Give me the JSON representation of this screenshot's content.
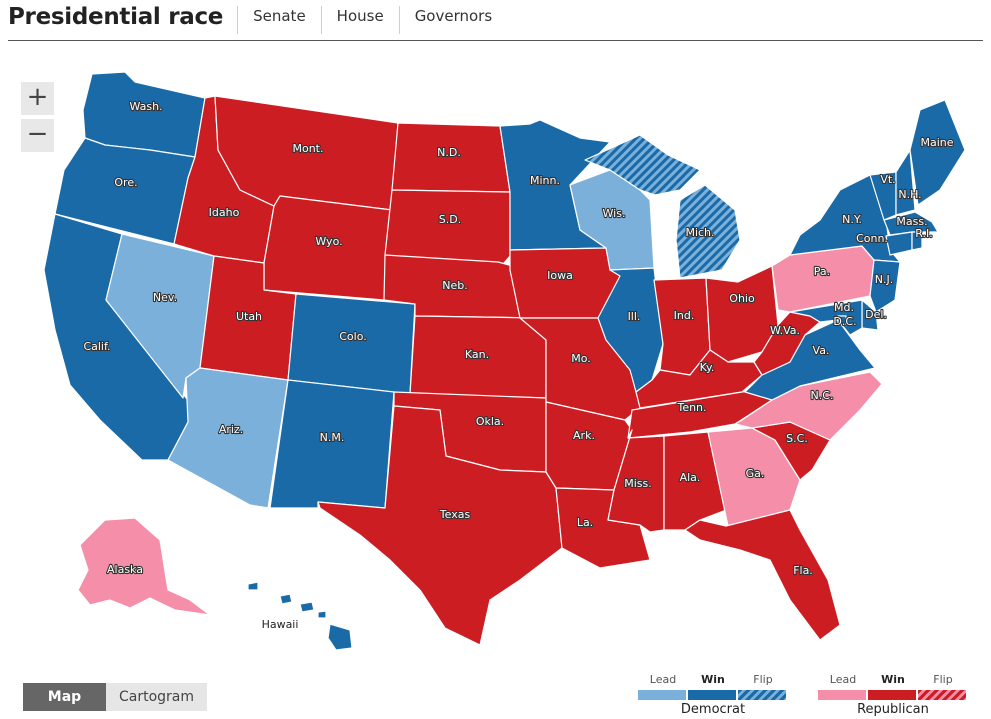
{
  "header": {
    "title": "Presidential race",
    "tabs": [
      "Senate",
      "House",
      "Governors"
    ]
  },
  "zoom": {
    "in_label": "+",
    "out_label": "−"
  },
  "toggle": {
    "map_label": "Map",
    "cartogram_label": "Cartogram",
    "selected": "Map"
  },
  "colors": {
    "dem_win": "#1a6aa8",
    "dem_lead": "#7ab0da",
    "dem_flip_pattern": "#1a6aa8",
    "rep_win": "#cc1d23",
    "rep_lead": "#f58fa9",
    "rep_flip_pattern": "#cc1d23"
  },
  "legend": {
    "democrat": {
      "party": "Democrat",
      "lead": "Lead",
      "win": "Win",
      "flip": "Flip"
    },
    "republican": {
      "party": "Republican",
      "lead": "Lead",
      "win": "Win",
      "flip": "Flip"
    }
  },
  "states": {
    "WA": {
      "label": "Wash.",
      "status": "dem_win"
    },
    "OR": {
      "label": "Ore.",
      "status": "dem_win"
    },
    "CA": {
      "label": "Calif.",
      "status": "dem_win"
    },
    "NV": {
      "label": "Nev.",
      "status": "dem_lead"
    },
    "ID": {
      "label": "Idaho",
      "status": "rep_win"
    },
    "MT": {
      "label": "Mont.",
      "status": "rep_win"
    },
    "WY": {
      "label": "Wyo.",
      "status": "rep_win"
    },
    "UT": {
      "label": "Utah",
      "status": "rep_win"
    },
    "AZ": {
      "label": "Ariz.",
      "status": "dem_lead"
    },
    "CO": {
      "label": "Colo.",
      "status": "dem_win"
    },
    "NM": {
      "label": "N.M.",
      "status": "dem_win"
    },
    "ND": {
      "label": "N.D.",
      "status": "rep_win"
    },
    "SD": {
      "label": "S.D.",
      "status": "rep_win"
    },
    "NE": {
      "label": "Neb.",
      "status": "rep_win"
    },
    "KS": {
      "label": "Kan.",
      "status": "rep_win"
    },
    "OK": {
      "label": "Okla.",
      "status": "rep_win"
    },
    "TX": {
      "label": "Texas",
      "status": "rep_win"
    },
    "MN": {
      "label": "Minn.",
      "status": "dem_win"
    },
    "IA": {
      "label": "Iowa",
      "status": "rep_win"
    },
    "MO": {
      "label": "Mo.",
      "status": "rep_win"
    },
    "AR": {
      "label": "Ark.",
      "status": "rep_win"
    },
    "LA": {
      "label": "La.",
      "status": "rep_win"
    },
    "WI": {
      "label": "Wis.",
      "status": "dem_lead"
    },
    "IL": {
      "label": "Ill.",
      "status": "dem_win"
    },
    "MI": {
      "label": "Mich.",
      "status": "dem_flip"
    },
    "IN": {
      "label": "Ind.",
      "status": "rep_win"
    },
    "OH": {
      "label": "Ohio",
      "status": "rep_win"
    },
    "KY": {
      "label": "Ky.",
      "status": "rep_win"
    },
    "TN": {
      "label": "Tenn.",
      "status": "rep_win"
    },
    "MS": {
      "label": "Miss.",
      "status": "rep_win"
    },
    "AL": {
      "label": "Ala.",
      "status": "rep_win"
    },
    "GA": {
      "label": "Ga.",
      "status": "rep_lead"
    },
    "FL": {
      "label": "Fla.",
      "status": "rep_win"
    },
    "SC": {
      "label": "S.C.",
      "status": "rep_win"
    },
    "NC": {
      "label": "N.C.",
      "status": "rep_lead"
    },
    "VA": {
      "label": "Va.",
      "status": "dem_win"
    },
    "WV": {
      "label": "W.Va.",
      "status": "rep_win"
    },
    "PA": {
      "label": "Pa.",
      "status": "rep_lead"
    },
    "NY": {
      "label": "N.Y.",
      "status": "dem_win"
    },
    "VT": {
      "label": "Vt.",
      "status": "dem_win"
    },
    "NH": {
      "label": "N.H.",
      "status": "dem_win"
    },
    "ME": {
      "label": "Maine",
      "status": "dem_win"
    },
    "MA": {
      "label": "Mass.",
      "status": "dem_win"
    },
    "RI": {
      "label": "R.I.",
      "status": "dem_win"
    },
    "CT": {
      "label": "Conn.",
      "status": "dem_win"
    },
    "NJ": {
      "label": "N.J.",
      "status": "dem_win"
    },
    "DE": {
      "label": "Del.",
      "status": "dem_win"
    },
    "MD": {
      "label": "Md.",
      "status": "dem_win"
    },
    "DC": {
      "label": "D.C.",
      "status": "dem_win"
    },
    "AK": {
      "label": "Alaska",
      "status": "rep_lead"
    },
    "HI": {
      "label": "Hawaii",
      "status": "dem_win"
    }
  }
}
